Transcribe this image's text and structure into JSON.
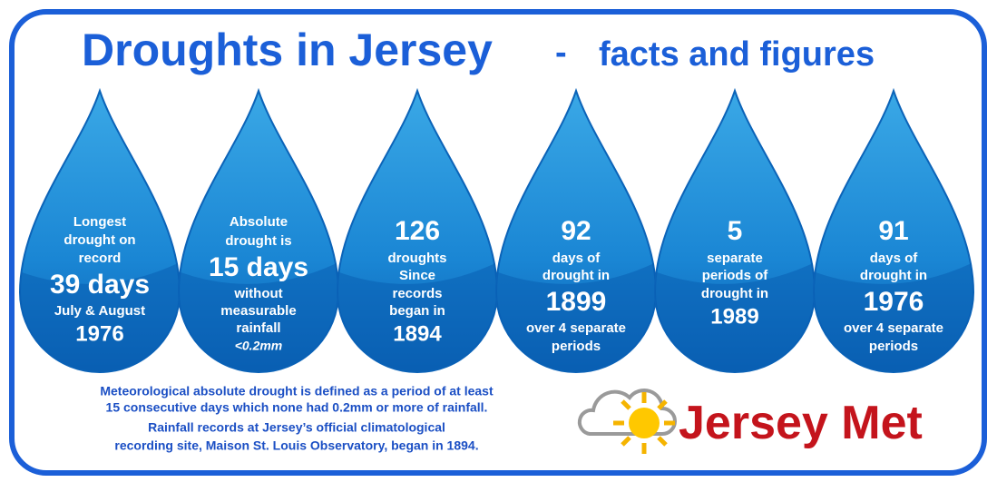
{
  "title": {
    "main": "Droughts in Jersey",
    "dash": "-",
    "sub": "facts and figures"
  },
  "drops": [
    {
      "lines": [
        "Longest",
        "drought on",
        "record",
        "39 days",
        "July & August",
        "1976"
      ]
    },
    {
      "lines": [
        "Absolute",
        "drought is",
        "15 days",
        "without",
        "measurable",
        "rainfall",
        "<0.2mm"
      ]
    },
    {
      "lines": [
        "126",
        "droughts",
        "Since",
        "records",
        "began in",
        "1894"
      ]
    },
    {
      "lines": [
        "92",
        "days of",
        "drought in",
        "1899",
        "over 4 separate",
        "periods"
      ]
    },
    {
      "lines": [
        "5",
        "separate",
        "periods of",
        "drought in",
        "1989"
      ]
    },
    {
      "lines": [
        "91",
        "days of",
        "drought in",
        "1976",
        "over 4 separate",
        "periods"
      ]
    }
  ],
  "notes": [
    [
      "Meteorological absolute drought is defined as a period of at least",
      "15 consecutive days which none had 0.2mm or more of rainfall."
    ],
    [
      "Rainfall records at Jersey’s official climatological",
      "recording site, Maison St. Louis Observatory, began in 1894."
    ]
  ],
  "logo": "Jersey Met"
}
